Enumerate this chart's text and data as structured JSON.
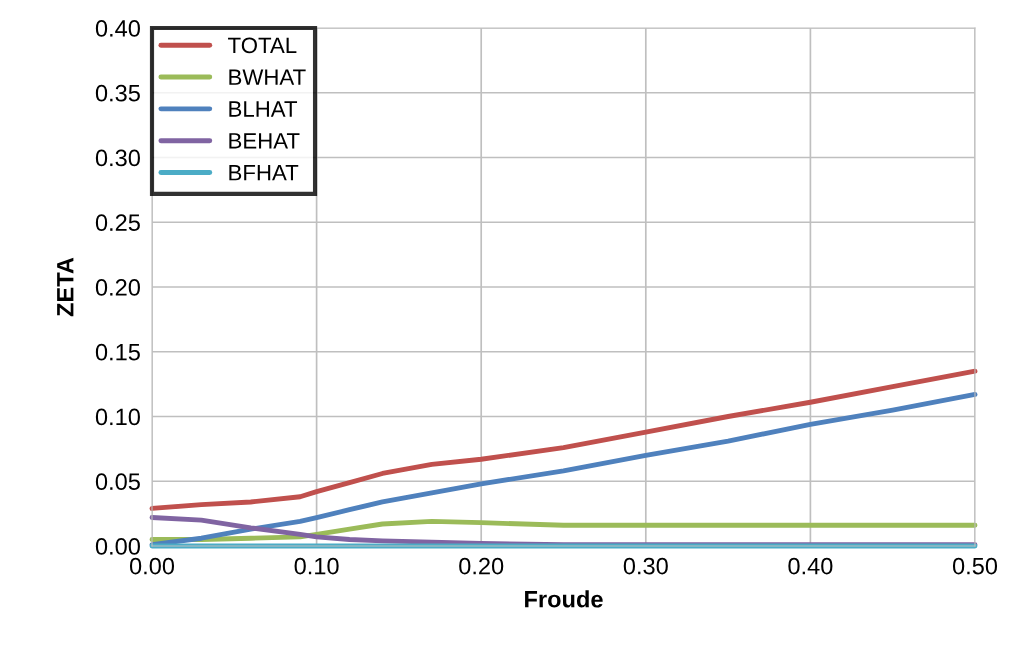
{
  "chart_data": {
    "type": "line",
    "xlabel": "Froude",
    "ylabel": "ZETA",
    "x": [
      0,
      0.03,
      0.06,
      0.09,
      0.1,
      0.12,
      0.14,
      0.17,
      0.2,
      0.25,
      0.3,
      0.35,
      0.4,
      0.45,
      0.5
    ],
    "series": [
      {
        "name": "TOTAL",
        "color": "#c0504d",
        "values": [
          0.029,
          0.032,
          0.034,
          0.038,
          0.042,
          0.049,
          0.056,
          0.063,
          0.067,
          0.076,
          0.088,
          0.1,
          0.111,
          0.123,
          0.135
        ]
      },
      {
        "name": "BWHAT",
        "color": "#9bbb59",
        "values": [
          0.005,
          0.005,
          0.006,
          0.007,
          0.009,
          0.013,
          0.017,
          0.019,
          0.018,
          0.016,
          0.016,
          0.016,
          0.016,
          0.016,
          0.016
        ]
      },
      {
        "name": "BLHAT",
        "color": "#4f81bd",
        "values": [
          0.001,
          0.006,
          0.013,
          0.019,
          0.022,
          0.028,
          0.034,
          0.041,
          0.048,
          0.058,
          0.07,
          0.081,
          0.094,
          0.105,
          0.117
        ]
      },
      {
        "name": "BEHAT",
        "color": "#8064a2",
        "values": [
          0.022,
          0.02,
          0.014,
          0.009,
          0.007,
          0.005,
          0.004,
          0.003,
          0.002,
          0.001,
          0.001,
          0.001,
          0.001,
          0.001,
          0.001
        ]
      },
      {
        "name": "BFHAT",
        "color": "#4bacc6",
        "values": [
          0,
          0,
          0,
          0,
          0,
          0,
          0,
          0,
          0,
          0,
          0,
          0,
          0,
          0,
          0
        ]
      }
    ],
    "xlim": [
      0,
      0.5
    ],
    "ylim": [
      0,
      0.4
    ],
    "xticks": [
      {
        "value": 0,
        "label": "0.00"
      },
      {
        "value": 0.1,
        "label": "0.10"
      },
      {
        "value": 0.2,
        "label": "0.20"
      },
      {
        "value": 0.3,
        "label": "0.30"
      },
      {
        "value": 0.4,
        "label": "0.40"
      },
      {
        "value": 0.5,
        "label": "0.50"
      }
    ],
    "yticks": [
      {
        "value": 0,
        "label": "0.00"
      },
      {
        "value": 0.05,
        "label": "0.05"
      },
      {
        "value": 0.1,
        "label": "0.10"
      },
      {
        "value": 0.15,
        "label": "0.15"
      },
      {
        "value": 0.2,
        "label": "0.20"
      },
      {
        "value": 0.25,
        "label": "0.25"
      },
      {
        "value": 0.3,
        "label": "0.30"
      },
      {
        "value": 0.35,
        "label": "0.35"
      },
      {
        "value": 0.4,
        "label": "0.40"
      }
    ],
    "grid": true,
    "legend": "top left",
    "marker": "none",
    "line_style": "solid"
  }
}
